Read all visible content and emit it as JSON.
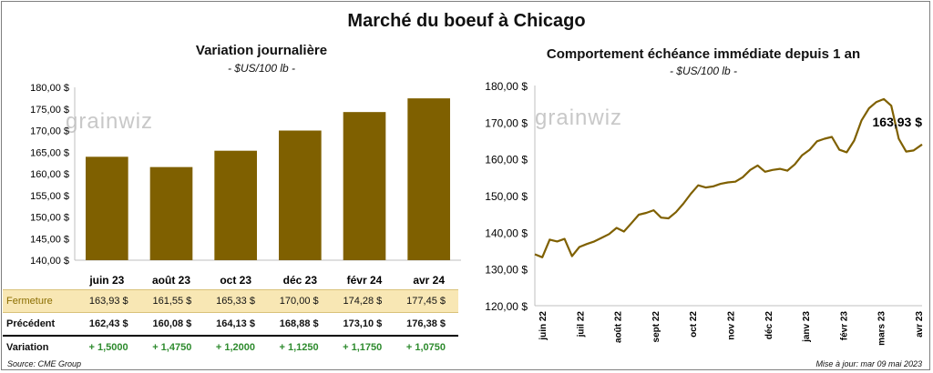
{
  "title": "Marché du boeuf à Chicago",
  "source": "Source: CME Group",
  "updated": "Mise à jour: mar 09 mai 2023",
  "watermark": "grainwiz",
  "colors": {
    "bar": "#7f6000",
    "line": "#7f6000",
    "fermeture_bg": "#f8e7b4",
    "positive": "#2e8b2e"
  },
  "chart_data": [
    {
      "type": "bar",
      "title": "Variation journalière",
      "subtitle": "- $US/100 lb -",
      "categories": [
        "juin 23",
        "août 23",
        "oct 23",
        "déc 23",
        "févr 24",
        "avr 24"
      ],
      "values": [
        163.93,
        161.55,
        165.33,
        170.0,
        174.28,
        177.45
      ],
      "ylim": [
        140,
        180
      ],
      "yticks": [
        "140,00 $",
        "145,00 $",
        "150,00 $",
        "155,00 $",
        "160,00 $",
        "165,00 $",
        "170,00 $",
        "175,00 $",
        "180,00 $"
      ],
      "grid": false
    },
    {
      "type": "line",
      "title": "Comportement échéance immédiate depuis 1 an",
      "subtitle": "- $US/100 lb -",
      "xlabels": [
        "juin 22",
        "juil 22",
        "août 22",
        "sept 22",
        "oct 22",
        "nov 22",
        "déc 22",
        "janv 23",
        "févr 23",
        "mars 23",
        "avr 23"
      ],
      "ylim": [
        120,
        180
      ],
      "yticks": [
        "120,00 $",
        "130,00 $",
        "140,00 $",
        "150,00 $",
        "160,00 $",
        "170,00 $",
        "180,00 $"
      ],
      "last_label": "163,93 $",
      "x": [
        "2022-05-09",
        "2022-05-16",
        "2022-05-23",
        "2022-05-30",
        "2022-06-06",
        "2022-06-13",
        "2022-06-20",
        "2022-06-27",
        "2022-07-04",
        "2022-07-11",
        "2022-07-18",
        "2022-07-25",
        "2022-08-01",
        "2022-08-08",
        "2022-08-15",
        "2022-08-22",
        "2022-08-29",
        "2022-09-05",
        "2022-09-12",
        "2022-09-19",
        "2022-09-26",
        "2022-10-03",
        "2022-10-10",
        "2022-10-17",
        "2022-10-24",
        "2022-10-31",
        "2022-11-07",
        "2022-11-14",
        "2022-11-21",
        "2022-11-28",
        "2022-12-05",
        "2022-12-12",
        "2022-12-19",
        "2022-12-26",
        "2023-01-02",
        "2023-01-09",
        "2023-01-16",
        "2023-01-23",
        "2023-01-30",
        "2023-02-06",
        "2023-02-13",
        "2023-02-20",
        "2023-02-27",
        "2023-03-06",
        "2023-03-13",
        "2023-03-20",
        "2023-03-27",
        "2023-04-03",
        "2023-04-10",
        "2023-04-17",
        "2023-04-24",
        "2023-05-01",
        "2023-05-09"
      ],
      "y": [
        134.0,
        133.2,
        138.0,
        137.5,
        138.2,
        133.5,
        136.0,
        136.8,
        137.5,
        138.5,
        139.5,
        141.2,
        140.2,
        142.5,
        144.8,
        145.3,
        146.0,
        144.0,
        143.8,
        145.5,
        147.8,
        150.5,
        152.8,
        152.2,
        152.5,
        153.2,
        153.6,
        153.8,
        155.0,
        157.0,
        158.2,
        156.5,
        157.0,
        157.3,
        156.8,
        158.5,
        161.0,
        162.5,
        164.8,
        165.5,
        166.0,
        162.5,
        161.8,
        165.0,
        170.5,
        173.8,
        175.5,
        176.3,
        174.5,
        165.5,
        162.0,
        162.3,
        163.93
      ]
    }
  ],
  "table": {
    "rows": [
      {
        "label": "Fermeture",
        "values": [
          "163,93  $",
          "161,55  $",
          "165,33  $",
          "170,00  $",
          "174,28  $",
          "177,45  $"
        ]
      },
      {
        "label": "Précédent",
        "values": [
          "162,43  $",
          "160,08  $",
          "164,13  $",
          "168,88  $",
          "173,10  $",
          "176,38  $"
        ]
      },
      {
        "label": "Variation",
        "values": [
          "+ 1,5000",
          "+ 1,4750",
          "+ 1,2000",
          "+ 1,1250",
          "+ 1,1750",
          "+ 1,0750"
        ]
      }
    ]
  }
}
